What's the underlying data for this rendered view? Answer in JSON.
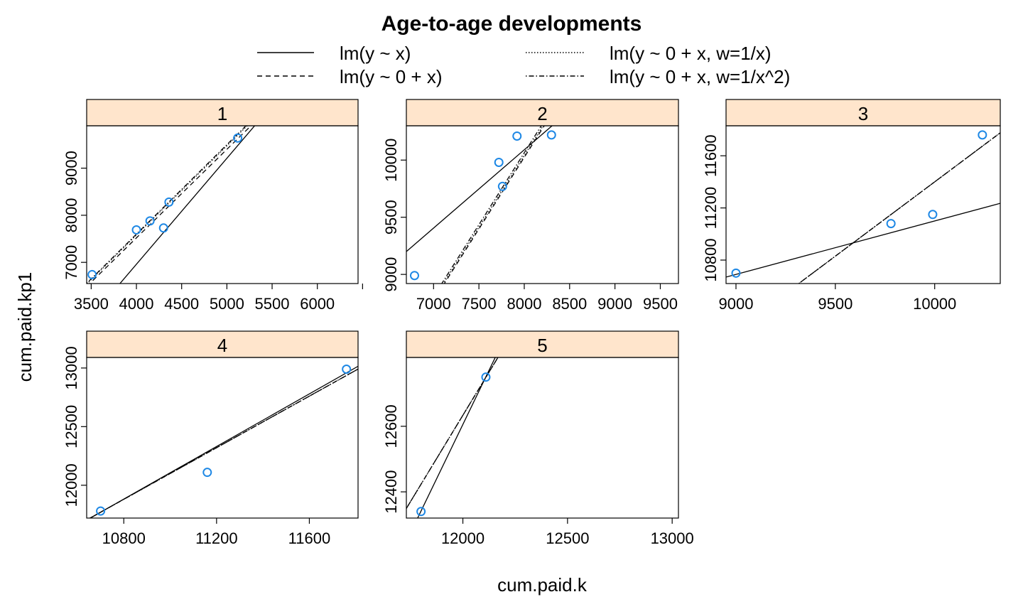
{
  "chart_data": {
    "type": "scatter",
    "title": "Age-to-age developments",
    "xlabel": "cum.paid.k",
    "ylabel": "cum.paid.kp1",
    "point_color": "#1e88e5",
    "legend": {
      "placement": "top",
      "entries": [
        {
          "label": "lm(y ~ x)",
          "line": "solid"
        },
        {
          "label": "lm(y ~ 0 + x, w=1/x)",
          "line": "dotted"
        },
        {
          "label": "lm(y ~ 0 + x)",
          "line": "dashed"
        },
        {
          "label": "lm(y ~ 0 + x, w=1/x^2)",
          "line": "dotdash"
        }
      ]
    },
    "panels": [
      {
        "strip": "1",
        "xlim": [
          3450,
          6450
        ],
        "ylim": [
          6550,
          9900
        ],
        "xticks": [
          3500,
          4000,
          4500,
          5000,
          5500,
          6000,
          6500
        ],
        "xticklabels": [
          "3500",
          "4000",
          "4500",
          "5000",
          "5500",
          "6000",
          ""
        ],
        "yticks": [
          7000,
          8000,
          9000
        ],
        "yticklabels": [
          "7000",
          "8000",
          "9000"
        ],
        "x": [
          3510,
          4000,
          4150,
          4300,
          4360,
          5120
        ],
        "y": [
          6740,
          7690,
          7880,
          7730,
          8280,
          9640
        ],
        "fits": {
          "lm": [
            -2040,
            2.25
          ],
          "w1": 1.895,
          "ols0": 1.88,
          "w2": 1.9
        }
      },
      {
        "strip": "2",
        "xlim": [
          6700,
          9700
        ],
        "ylim": [
          8920,
          10300
        ],
        "xticks": [
          7000,
          7500,
          8000,
          8500,
          9000,
          9500
        ],
        "xticklabels": [
          "7000",
          "7500",
          "8000",
          "8500",
          "9000",
          "9500"
        ],
        "yticks": [
          9000,
          9500,
          10000
        ],
        "yticklabels": [
          "9000",
          "9500",
          "10000"
        ],
        "x": [
          6790,
          7720,
          7760,
          7920,
          8300
        ],
        "y": [
          8990,
          9980,
          9770,
          10210,
          10220
        ],
        "fits": {
          "lm": [
            4610,
            0.685
          ],
          "w1": 1.255,
          "ols0": 1.253,
          "w2": 1.258
        }
      },
      {
        "strip": "3",
        "xlim": [
          8950,
          10330
        ],
        "ylim": [
          10620,
          11830
        ],
        "xticks": [
          9000,
          9500,
          10000
        ],
        "xticklabels": [
          "9000",
          "9500",
          "10000"
        ],
        "yticks": [
          10800,
          11200,
          11600
        ],
        "yticklabels": [
          "10800",
          "11200",
          "11600"
        ],
        "x": [
          9000,
          9780,
          9990,
          10240
        ],
        "y": [
          10700,
          11080,
          11150,
          11760
        ],
        "fits": {
          "lm": [
            7000,
            0.41
          ],
          "w1": 1.14,
          "ols0": 1.14,
          "w2": 1.14
        }
      },
      {
        "strip": "4",
        "xlim": [
          10640,
          11810
        ],
        "ylim": [
          11720,
          13090
        ],
        "xticks": [
          10800,
          11200,
          11600
        ],
        "xticklabels": [
          "10800",
          "11200",
          "11600"
        ],
        "yticks": [
          12000,
          12500,
          13000
        ],
        "yticklabels": [
          "12000",
          "12500",
          "13000"
        ],
        "x": [
          10700,
          11160,
          11760
        ],
        "y": [
          11780,
          12110,
          12990
        ],
        "fits": {
          "lm": [
            -236,
            1.122
          ],
          "w1": 1.1,
          "ols0": 1.1,
          "w2": 1.1
        }
      },
      {
        "strip": "5",
        "xlim": [
          11730,
          13030
        ],
        "ylim": [
          12320,
          12810
        ],
        "xticks": [
          12000,
          12500,
          13000
        ],
        "xticklabels": [
          "12000",
          "12500",
          "13000"
        ],
        "yticks": [
          12400,
          12600
        ],
        "yticklabels": [
          "12400",
          "12600"
        ],
        "x": [
          11800,
          12110
        ],
        "y": [
          12340,
          12750
        ],
        "fits": {
          "lm": [
            -3250,
            1.3213
          ],
          "w1": 1.0528,
          "ols0": 1.0528,
          "w2": 1.0528
        }
      }
    ]
  }
}
